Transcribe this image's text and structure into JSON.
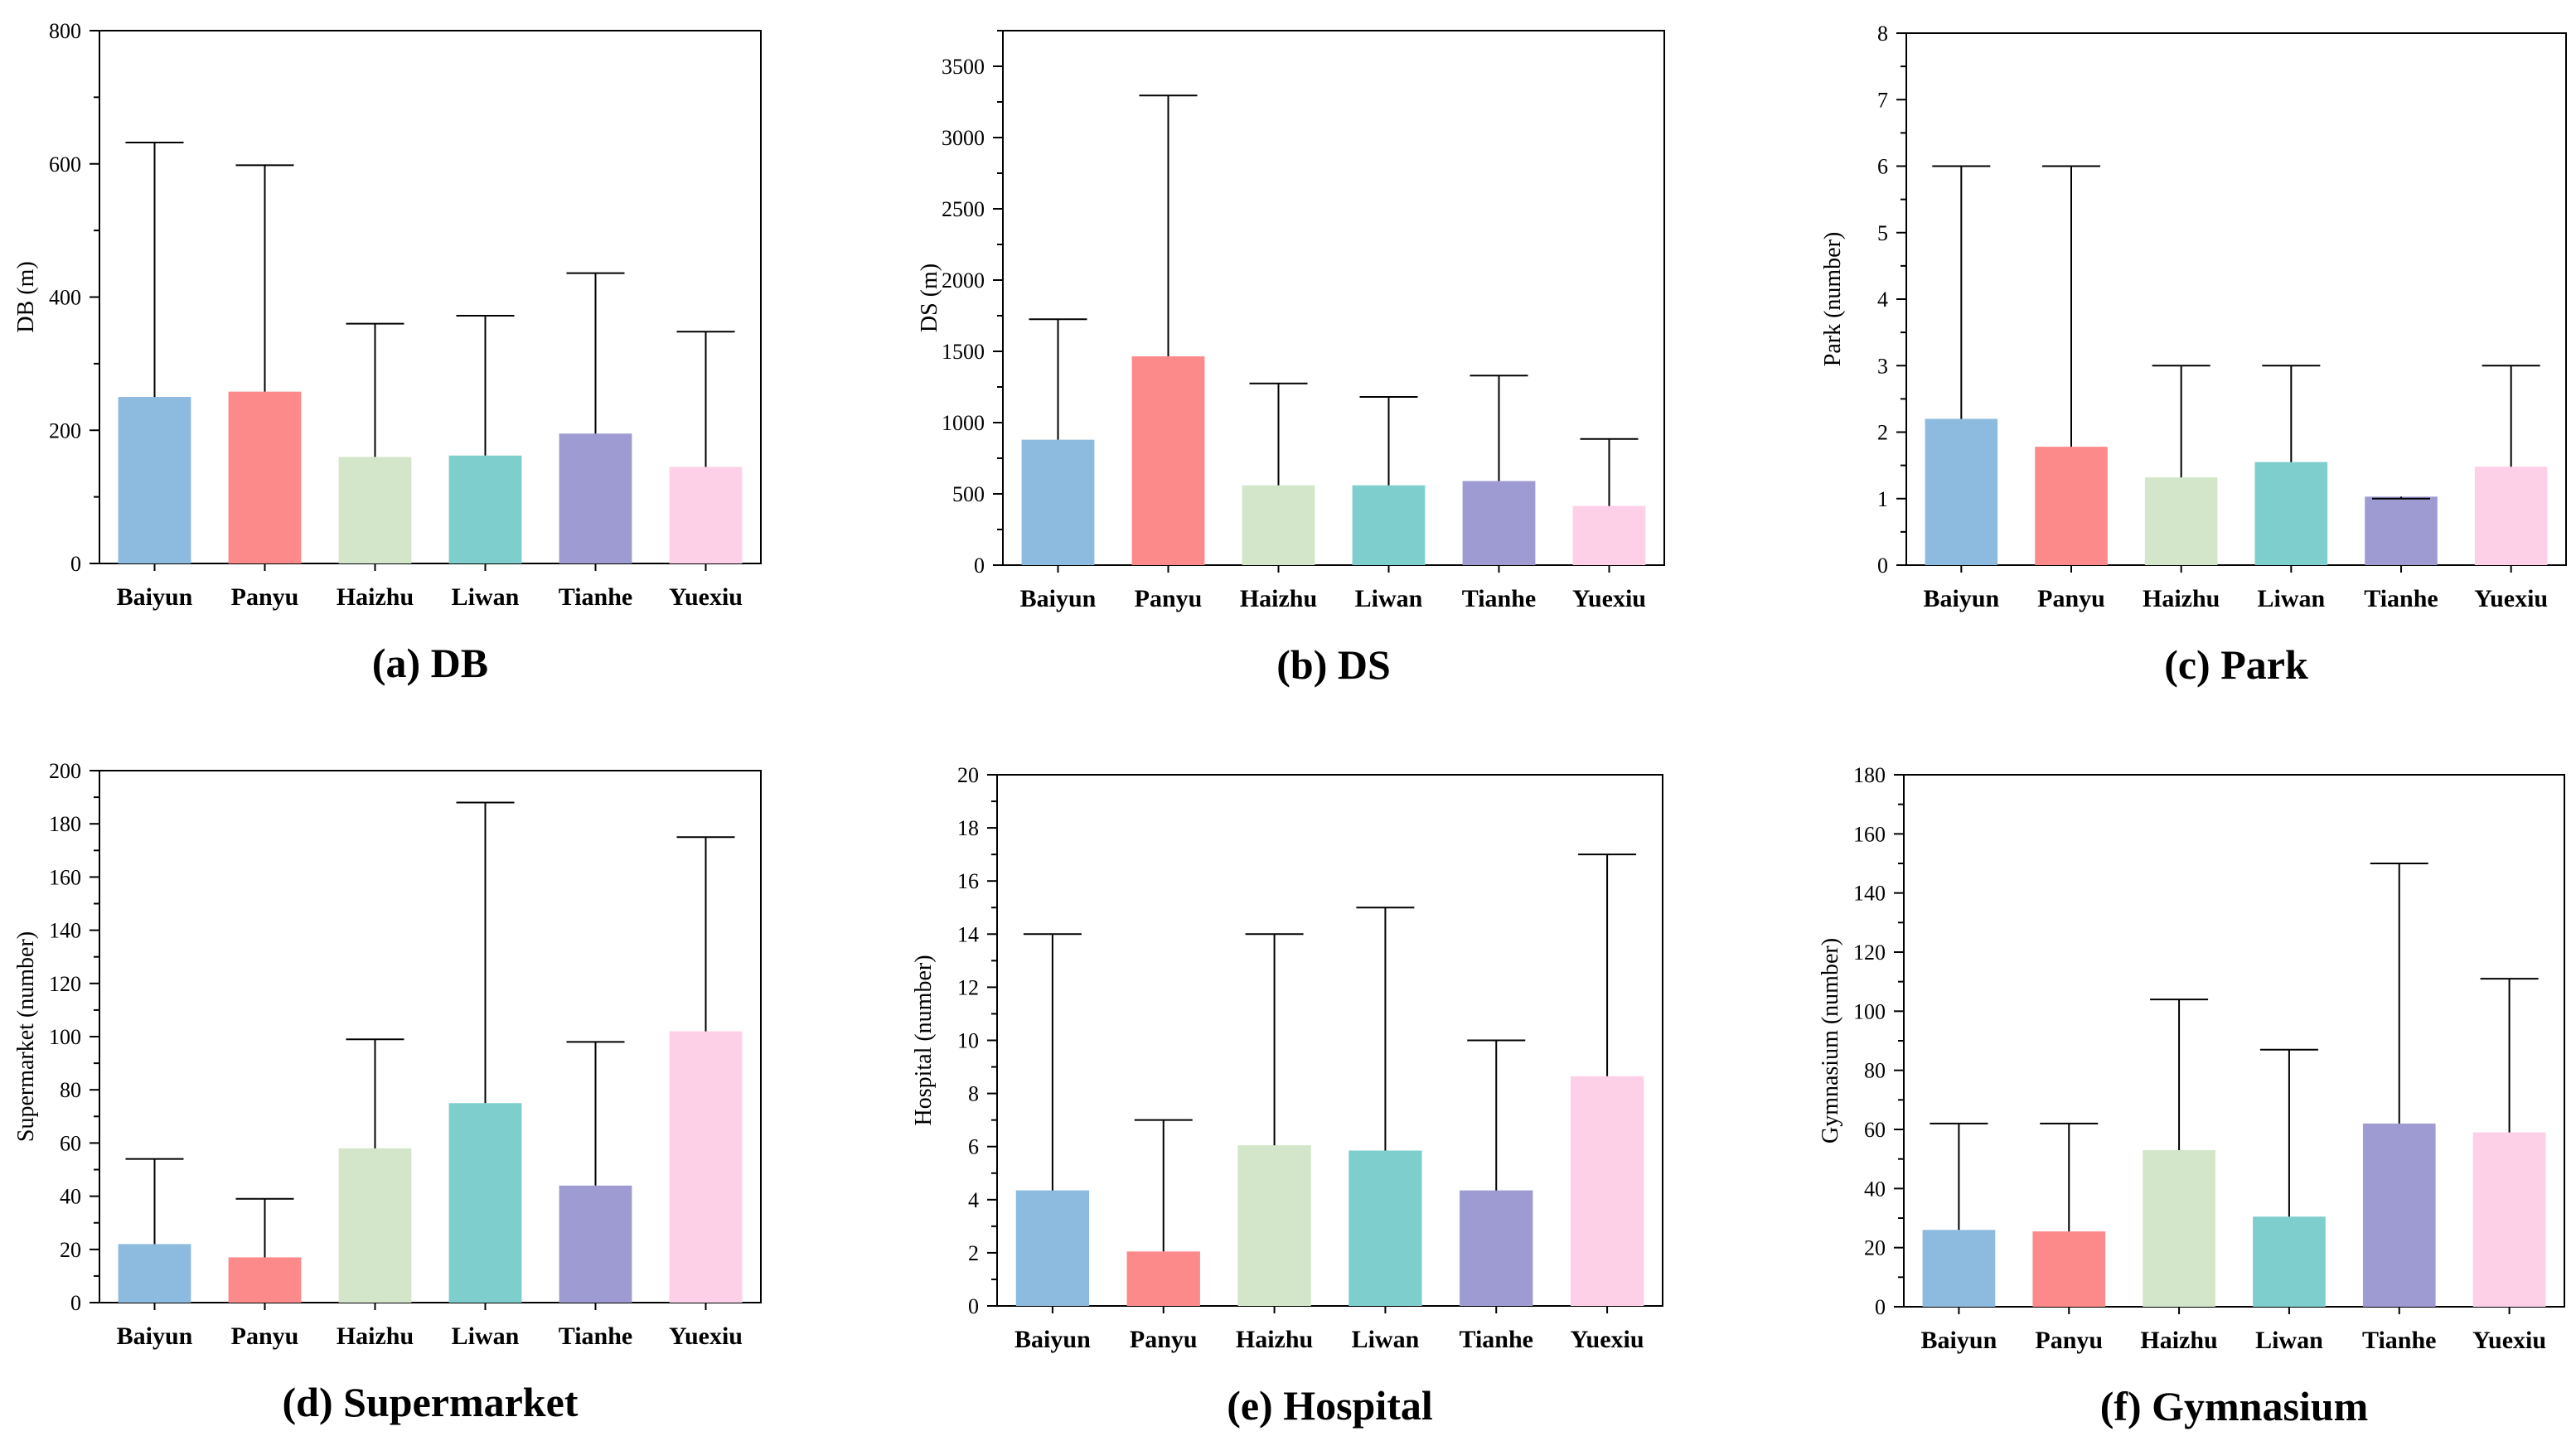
{
  "chart_data": [
    {
      "type": "bar",
      "caption": "(a) DB",
      "ylabel": "DB (m)",
      "ylim": [
        0,
        800
      ],
      "yticks": [
        0,
        200,
        400,
        600,
        800
      ],
      "categories": [
        "Baiyun",
        "Panyu",
        "Haizhu",
        "Liwan",
        "Tianhe",
        "Yuexiu"
      ],
      "values": [
        250,
        258,
        160,
        162,
        195,
        145
      ],
      "error_upper": [
        632,
        598,
        360,
        372,
        436,
        348
      ],
      "colors": [
        "#8DBADF",
        "#FD8A8B",
        "#D4E6CA",
        "#7ECECD",
        "#9E9BD2",
        "#FED0E8"
      ]
    },
    {
      "type": "bar",
      "caption": "(b) DS",
      "ylabel": "DS (m)",
      "ylim": [
        0,
        3750
      ],
      "yticks": [
        0,
        500,
        1000,
        1500,
        2000,
        2500,
        3000,
        3500
      ],
      "categories": [
        "Baiyun",
        "Panyu",
        "Haizhu",
        "Liwan",
        "Tianhe",
        "Yuexiu"
      ],
      "values": [
        880,
        1465,
        560,
        560,
        590,
        415
      ],
      "error_upper": [
        1725,
        3295,
        1275,
        1180,
        1330,
        885
      ],
      "colors": [
        "#8DBADF",
        "#FD8A8B",
        "#D4E6CA",
        "#7ECECD",
        "#9E9BD2",
        "#FED0E8"
      ]
    },
    {
      "type": "bar",
      "caption": "(c) Park",
      "ylabel": "Park (number)",
      "ylim": [
        0,
        8
      ],
      "yticks": [
        0,
        1,
        2,
        3,
        4,
        5,
        6,
        7,
        8
      ],
      "categories": [
        "Baiyun",
        "Panyu",
        "Haizhu",
        "Liwan",
        "Tianhe",
        "Yuexiu"
      ],
      "values": [
        2.2,
        1.78,
        1.32,
        1.55,
        1.03,
        1.48
      ],
      "error_upper": [
        6,
        6,
        3,
        3,
        1.0,
        3
      ],
      "colors": [
        "#8DBADF",
        "#FD8A8B",
        "#D4E6CA",
        "#7ECECD",
        "#9E9BD2",
        "#FED0E8"
      ]
    },
    {
      "type": "bar",
      "caption": "(d) Supermarket",
      "ylabel": "Supermarket (number)",
      "ylim": [
        0,
        200
      ],
      "yticks": [
        0,
        20,
        40,
        60,
        80,
        100,
        120,
        140,
        160,
        180,
        200
      ],
      "categories": [
        "Baiyun",
        "Panyu",
        "Haizhu",
        "Liwan",
        "Tianhe",
        "Yuexiu"
      ],
      "values": [
        22,
        17,
        58,
        75,
        44,
        102
      ],
      "error_upper": [
        54,
        39,
        99,
        188,
        98,
        175
      ],
      "colors": [
        "#8DBADF",
        "#FD8A8B",
        "#D4E6CA",
        "#7ECECD",
        "#9E9BD2",
        "#FED0E8"
      ]
    },
    {
      "type": "bar",
      "caption": "(e) Hospital",
      "ylabel": "Hospital (number)",
      "ylim": [
        0,
        20
      ],
      "yticks": [
        0,
        2,
        4,
        6,
        8,
        10,
        12,
        14,
        16,
        18,
        20
      ],
      "categories": [
        "Baiyun",
        "Panyu",
        "Haizhu",
        "Liwan",
        "Tianhe",
        "Yuexiu"
      ],
      "values": [
        4.35,
        2.05,
        6.05,
        5.85,
        4.35,
        8.65
      ],
      "error_upper": [
        14,
        7,
        14,
        15,
        10,
        17
      ],
      "colors": [
        "#8DBADF",
        "#FD8A8B",
        "#D4E6CA",
        "#7ECECD",
        "#9E9BD2",
        "#FED0E8"
      ]
    },
    {
      "type": "bar",
      "caption": "(f) Gymnasium",
      "ylabel": "Gymnasium (number)",
      "ylim": [
        0,
        180
      ],
      "yticks": [
        0,
        20,
        40,
        60,
        80,
        100,
        120,
        140,
        160,
        180
      ],
      "categories": [
        "Baiyun",
        "Panyu",
        "Haizhu",
        "Liwan",
        "Tianhe",
        "Yuexiu"
      ],
      "values": [
        26,
        25.5,
        53,
        30.5,
        62,
        59
      ],
      "error_upper": [
        62,
        62,
        104,
        87,
        150,
        111
      ],
      "colors": [
        "#8DBADF",
        "#FD8A8B",
        "#D4E6CA",
        "#7ECECD",
        "#9E9BD2",
        "#FED0E8"
      ]
    }
  ]
}
